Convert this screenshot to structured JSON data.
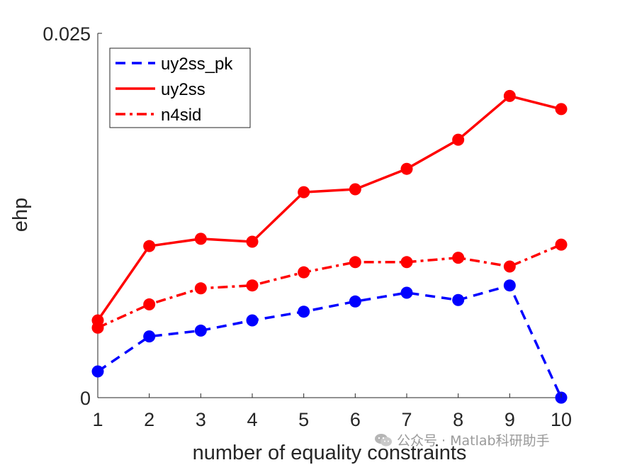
{
  "chart_data": {
    "type": "line",
    "xlabel": "number of equality constraints",
    "ylabel": "ehp",
    "x": [
      1,
      2,
      3,
      4,
      5,
      6,
      7,
      8,
      9,
      10
    ],
    "xticks": [
      "1",
      "2",
      "3",
      "4",
      "5",
      "6",
      "7",
      "8",
      "9",
      "10"
    ],
    "ylim": [
      0,
      0.025
    ],
    "yticks": [
      "0",
      "0.025"
    ],
    "grid": false,
    "legend_position": "top-left",
    "series": [
      {
        "name": "uy2ss_pk",
        "color": "#0000ff",
        "line_style": "dashed",
        "marker": "circle",
        "values": [
          0.0018,
          0.0042,
          0.0046,
          0.0053,
          0.0059,
          0.0066,
          0.0072,
          0.0067,
          0.0077,
          0.0
        ]
      },
      {
        "name": "uy2ss",
        "color": "#ff0000",
        "line_style": "solid",
        "marker": "circle",
        "values": [
          0.0053,
          0.0104,
          0.0109,
          0.0107,
          0.0141,
          0.0143,
          0.0157,
          0.0177,
          0.0207,
          0.0198
        ]
      },
      {
        "name": "n4sid",
        "color": "#ff0000",
        "line_style": "dashdot",
        "marker": "circle",
        "values": [
          0.0048,
          0.0064,
          0.0075,
          0.0077,
          0.0086,
          0.0093,
          0.0093,
          0.0096,
          0.009,
          0.0105
        ]
      }
    ]
  },
  "watermark": {
    "icon": "wechat-icon",
    "text": "公众号 · Matlab科研助手"
  }
}
